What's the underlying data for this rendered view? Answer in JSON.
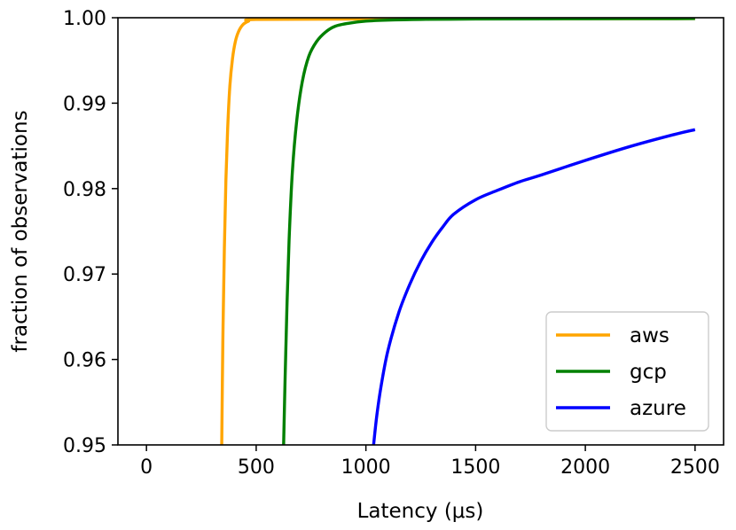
{
  "chart_data": {
    "type": "line",
    "title": "",
    "xlabel": "Latency (μs)",
    "ylabel": "fraction of observations",
    "xlim": [
      -130,
      2630
    ],
    "ylim": [
      0.95,
      1.0
    ],
    "x_ticks": [
      0,
      500,
      1000,
      1500,
      2000,
      2500
    ],
    "x_tick_labels": [
      "0",
      "500",
      "1000",
      "1500",
      "2000",
      "2500"
    ],
    "y_ticks": [
      0.95,
      0.96,
      0.97,
      0.98,
      0.99,
      1.0
    ],
    "y_tick_labels": [
      "0.95",
      "0.96",
      "0.97",
      "0.98",
      "0.99",
      "1.00"
    ],
    "grid": false,
    "legend_position": "lower-right",
    "series": [
      {
        "name": "aws",
        "color": "#FFA500",
        "x": [
          343,
          348,
          355,
          362,
          370,
          380,
          392,
          405,
          420,
          440,
          465,
          500,
          1000,
          2500
        ],
        "y": [
          0.95,
          0.962,
          0.973,
          0.981,
          0.987,
          0.992,
          0.9952,
          0.9972,
          0.9984,
          0.9992,
          0.9996,
          0.9998,
          0.99985,
          0.9999
        ]
      },
      {
        "name": "gcp",
        "color": "#008000",
        "x": [
          625,
          632,
          640,
          650,
          665,
          685,
          710,
          740,
          775,
          815,
          860,
          920,
          1000,
          1100,
          1250,
          1500,
          2000,
          2500
        ],
        "y": [
          0.95,
          0.958,
          0.966,
          0.974,
          0.982,
          0.988,
          0.9925,
          0.9955,
          0.9972,
          0.9983,
          0.999,
          0.99935,
          0.9996,
          0.99972,
          0.9998,
          0.99985,
          0.99988,
          0.9999
        ]
      },
      {
        "name": "azure",
        "color": "#0000FF",
        "x": [
          1035,
          1050,
          1070,
          1100,
          1150,
          1200,
          1250,
          1300,
          1350,
          1400,
          1500,
          1600,
          1700,
          1800,
          2000,
          2200,
          2400,
          2500
        ],
        "y": [
          0.95,
          0.9535,
          0.957,
          0.961,
          0.9655,
          0.9688,
          0.9715,
          0.9737,
          0.9755,
          0.977,
          0.9787,
          0.9798,
          0.9808,
          0.9816,
          0.9833,
          0.9849,
          0.9863,
          0.9869
        ]
      }
    ]
  }
}
